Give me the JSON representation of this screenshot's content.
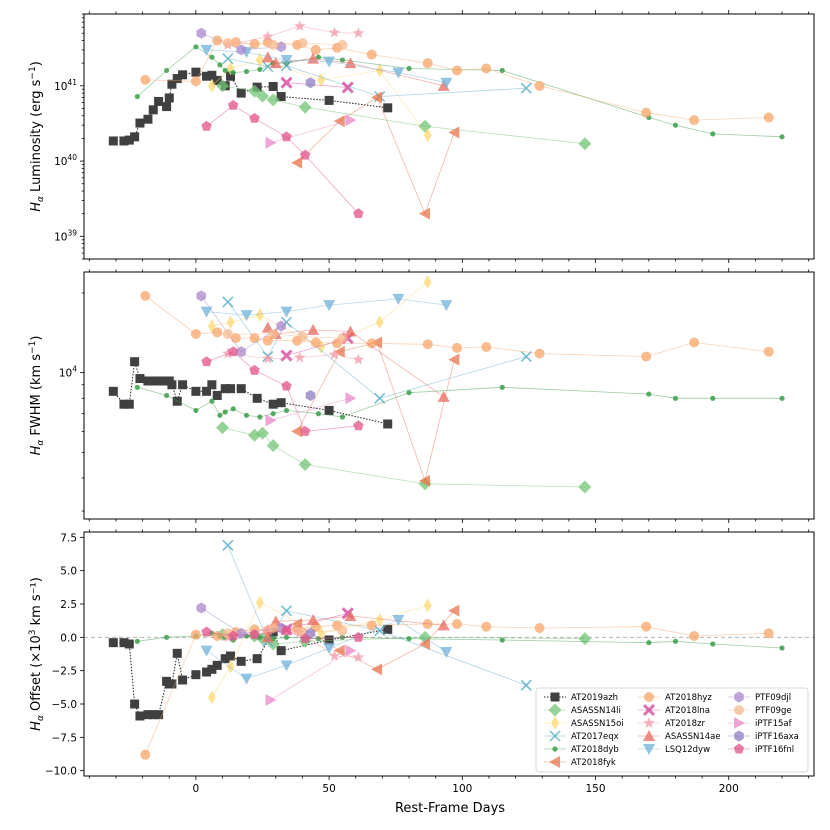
{
  "chart_data": {
    "type": "scatter",
    "xlabel": "Rest-Frame Days",
    "xlim": [
      -42,
      232
    ],
    "x_ticks": [
      0,
      50,
      100,
      150,
      200
    ],
    "panels": [
      {
        "name": "luminosity",
        "ylabel_main": "H",
        "ylabel_sub": "α",
        "ylabel_rest": " Luminosity (erg s",
        "ylabel_sup": "−1",
        "ylabel_end": ")",
        "scale": "log",
        "ylim": [
          5e+38,
          9e+41
        ],
        "yticks": [
          {
            "value": 1e+39,
            "base": "10",
            "exp": "39"
          },
          {
            "value": 1e+40,
            "base": "10",
            "exp": "40"
          },
          {
            "value": 1e+41,
            "base": "10",
            "exp": "41"
          }
        ]
      },
      {
        "name": "fwhm",
        "ylabel_main": "H",
        "ylabel_sub": "α",
        "ylabel_rest": " FWHM (km s",
        "ylabel_sup": "−1",
        "ylabel_end": ")",
        "scale": "log",
        "ylim": [
          2800,
          24000
        ],
        "yticks": [
          {
            "value": 10000,
            "base": "10",
            "exp": "4"
          }
        ]
      },
      {
        "name": "offset",
        "ylabel_main": "H",
        "ylabel_sub": "α",
        "ylabel_rest": " Offset (×10",
        "ylabel_sup": "3",
        "ylabel_end": " km s⁻¹)",
        "scale": "linear",
        "ylim": [
          -10.4,
          7.9
        ],
        "yticks": [
          {
            "value": 7.5,
            "label": "7.5"
          },
          {
            "value": 5.0,
            "label": "5.0"
          },
          {
            "value": 2.5,
            "label": "2.5"
          },
          {
            "value": 0.0,
            "label": "0.0"
          },
          {
            "value": -2.5,
            "label": "−2.5"
          },
          {
            "value": -5.0,
            "label": "−5.0"
          },
          {
            "value": -7.5,
            "label": "−7.5"
          },
          {
            "value": -10.0,
            "label": "−10.0"
          }
        ],
        "zero_line": 0
      }
    ],
    "legend_position": "lower-right",
    "series": [
      {
        "name": "AT2019azh",
        "color": "#404040",
        "marker": "square",
        "line": "dotted",
        "x": [
          -31,
          -27,
          -25,
          -23,
          -21,
          -18,
          -16,
          -14,
          -11,
          -10,
          -9,
          -7,
          -5,
          0,
          4,
          6,
          8,
          11,
          13,
          17,
          23,
          29,
          32,
          50,
          72
        ],
        "lum": [
          1.85e+40,
          1.85e+40,
          1.9e+40,
          2.1e+40,
          3.2e+40,
          3.6e+40,
          4.8e+40,
          6.2e+40,
          5.3e+40,
          6.9e+40,
          1.05e+41,
          1.25e+41,
          1.4e+41,
          1.52e+41,
          1.34e+41,
          1.38e+41,
          1.18e+41,
          1e+41,
          1.34e+41,
          8e+40,
          9.6e+40,
          9.8e+40,
          7.2e+40,
          6.4e+40,
          5.1e+40
        ],
        "fwhm": [
          8500,
          7600,
          7600,
          11000,
          9500,
          9300,
          9300,
          9300,
          9300,
          9300,
          9000,
          7800,
          9000,
          8500,
          8500,
          9000,
          8200,
          8700,
          8700,
          8700,
          8000,
          7600,
          7700,
          7200,
          6400
        ],
        "offset": [
          -0.4,
          -0.4,
          -0.5,
          -5.0,
          -5.9,
          -5.8,
          -5.8,
          -5.8,
          -3.3,
          -3.5,
          -3.5,
          -1.2,
          -3.2,
          -2.8,
          -2.6,
          -2.4,
          -2.1,
          -1.6,
          -1.4,
          -1.8,
          -1.6,
          0.4,
          -1.0,
          -0.2,
          0.6
        ]
      },
      {
        "name": "ASASSN14li",
        "color": "#73c476",
        "marker": "diamond",
        "line": "solid",
        "x": [
          10,
          22,
          25,
          29,
          41,
          86,
          146
        ],
        "lum": [
          1e+41,
          8.5e+40,
          7.3e+40,
          6.5e+40,
          5.2e+40,
          2.9e+40,
          1.7e+40
        ],
        "fwhm": [
          6200,
          5800,
          5900,
          5300,
          4500,
          3800,
          3700
        ],
        "offset": [
          0.2,
          0.1,
          -0.1,
          -0.5,
          -0.3,
          0.0,
          -0.1
        ]
      },
      {
        "name": "ASASSN15oi",
        "color": "#fdd873",
        "marker": "thin_diamond",
        "line": "solid",
        "x": [
          6,
          13,
          24,
          47,
          69,
          87
        ],
        "lum": [
          1e+41,
          1.7e+41,
          2.2e+41,
          1.2e+41,
          1.6e+41,
          2.2e+40
        ],
        "fwhm": [
          15000,
          15500,
          16500,
          12500,
          15500,
          22000
        ],
        "offset": [
          -4.5,
          -2.2,
          2.6,
          0.3,
          1.3,
          2.4
        ]
      },
      {
        "name": "AT2017eqx",
        "color": "#5aaec9",
        "marker": "x",
        "line": "solid",
        "x": [
          12,
          27,
          34,
          69,
          124
        ],
        "lum": [
          2.3e+41,
          1.8e+41,
          1.85e+41,
          7.2e+40,
          9.3e+40
        ],
        "fwhm": [
          18500,
          11500,
          15500,
          8000,
          11500
        ],
        "offset": [
          6.9,
          -0.3,
          2.0,
          0.5,
          -3.6
        ]
      },
      {
        "name": "AT2018dyb",
        "color": "#3c9e4b",
        "marker": "dot",
        "line": "solid",
        "x": [
          -22,
          -11,
          0,
          6,
          9,
          11,
          14,
          19,
          24,
          29,
          34,
          46,
          55,
          80,
          115,
          170,
          180,
          194,
          220
        ],
        "lum": [
          7.2e+40,
          1.6e+41,
          3.3e+41,
          2.4e+41,
          1.9e+41,
          1.6e+41,
          1.5e+41,
          1.55e+41,
          1.65e+41,
          2e+41,
          2e+41,
          2.4e+41,
          2.2e+41,
          1.7e+41,
          1.6e+41,
          3.8e+40,
          3e+40,
          2.3e+40,
          2.1e+40
        ],
        "fwhm": [
          8800,
          8200,
          7200,
          7800,
          6900,
          7100,
          7300,
          6900,
          6800,
          7000,
          7200,
          7000,
          6800,
          8400,
          8800,
          8300,
          8000,
          8000,
          8000
        ],
        "offset": [
          -0.3,
          0.0,
          0.1,
          0.3,
          0.1,
          0.0,
          -0.2,
          0.1,
          0.0,
          -0.1,
          0.0,
          -0.1,
          0.0,
          -0.1,
          -0.2,
          -0.4,
          -0.3,
          -0.5,
          -0.8
        ]
      },
      {
        "name": "AT2018fyk",
        "color": "#e8744b",
        "marker": "triangle_left",
        "line": "solid",
        "x": [
          38,
          54,
          68,
          86,
          97
        ],
        "lum": [
          9.5e+39,
          3.4e+40,
          7e+40,
          2e+39,
          2.4e+40
        ],
        "fwhm": [
          6000,
          12000,
          13000,
          3900,
          11200
        ],
        "offset": [
          1.0,
          -1.0,
          -2.4,
          -0.5,
          2.0
        ]
      },
      {
        "name": "AT2018hyz",
        "color": "#f8a66a",
        "marker": "circle",
        "line": "solid",
        "x": [
          -19,
          0,
          8,
          15,
          22,
          27,
          38,
          45,
          53,
          66,
          87,
          98,
          109,
          129,
          169,
          187,
          215
        ],
        "lum": [
          1.2e+41,
          1.15e+41,
          4e+41,
          3.8e+41,
          3.6e+41,
          3.8e+41,
          3.5e+41,
          3e+41,
          3.2e+41,
          2.6e+41,
          2e+41,
          1.6e+41,
          1.7e+41,
          1e+41,
          4.4e+40,
          3.5e+40,
          3.8e+40
        ],
        "fwhm": [
          19500,
          14000,
          14200,
          13500,
          13500,
          13200,
          13200,
          13000,
          12900,
          12900,
          12800,
          12400,
          12500,
          11800,
          11500,
          13000,
          12000
        ],
        "offset": [
          -8.8,
          0.2,
          0.1,
          0.4,
          0.6,
          0.5,
          0.6,
          0.8,
          0.9,
          0.9,
          1.0,
          1.0,
          0.8,
          0.7,
          0.8,
          0.1,
          0.3
        ]
      },
      {
        "name": "AT2018lna",
        "color": "#d64a9f",
        "marker": "plus",
        "line": "solid",
        "x": [
          34,
          57
        ],
        "lum": [
          1.1e+41,
          9.5e+40
        ],
        "fwhm": [
          11600,
          13500
        ],
        "offset": [
          0.6,
          1.8
        ]
      },
      {
        "name": "AT2018zr",
        "color": "#f39aa8",
        "marker": "star",
        "line": "solid",
        "x": [
          12,
          27,
          39,
          52,
          61
        ],
        "lum": [
          3.5e+41,
          4.5e+41,
          6.2e+41,
          5.1e+41,
          5e+41
        ],
        "fwhm": [
          11800,
          11300,
          11400,
          11700,
          11200
        ],
        "offset": [
          0.0,
          0.6,
          0.4,
          -1.4,
          -1.5
        ]
      },
      {
        "name": "ASASSN14ae",
        "color": "#e86a5f",
        "marker": "triangle_up",
        "line": "solid",
        "x": [
          27,
          30,
          44,
          58,
          93
        ],
        "lum": [
          2.4e+41,
          2e+41,
          2.3e+41,
          2e+41,
          1e+41
        ],
        "fwhm": [
          14800,
          14000,
          14500,
          14300,
          8100
        ],
        "offset": [
          0.0,
          1.2,
          1.3,
          1.6,
          0.9
        ]
      },
      {
        "name": "LSQ12dyw",
        "color": "#6fb2d8",
        "marker": "triangle_down",
        "line": "solid",
        "x": [
          4,
          19,
          34,
          50,
          76,
          94
        ],
        "lum": [
          3e+41,
          2.8e+41,
          2.2e+41,
          2.1e+41,
          1.5e+41,
          1.1e+41
        ],
        "fwhm": [
          17000,
          16500,
          17000,
          18000,
          19000,
          18000
        ],
        "offset": [
          -1.0,
          -3.1,
          -2.1,
          -0.8,
          1.3,
          -1.1
        ]
      },
      {
        "name": "PTF09djl",
        "color": "#a987cc",
        "marker": "hexagon",
        "line": "solid",
        "x": [
          2,
          17,
          32
        ],
        "lum": [
          5e+41,
          3e+41,
          3.3e+41
        ],
        "fwhm": [
          19500,
          12000,
          15000
        ],
        "offset": [
          2.2,
          0.3,
          0.7
        ]
      },
      {
        "name": "PTF09ge",
        "color": "#f5b98f",
        "marker": "circle",
        "line": "solid",
        "x": [
          12,
          29,
          40,
          55
        ],
        "lum": [
          3.7e+41,
          3.5e+41,
          3.7e+41,
          3.5e+41
        ],
        "fwhm": [
          14000,
          14000,
          13700,
          13500
        ],
        "offset": [
          0.3,
          0.7,
          0.4,
          0.5
        ]
      },
      {
        "name": "iPTF15af",
        "color": "#e987c7",
        "marker": "triangle_right",
        "line": "solid",
        "x": [
          28,
          58
        ],
        "lum": [
          1.75e+40,
          3.5e+40
        ],
        "fwhm": [
          6600,
          8000
        ],
        "offset": [
          -4.7,
          -1.0
        ]
      },
      {
        "name": "iPTF16axa",
        "color": "#8c7cc0",
        "marker": "hexagon",
        "line": "solid",
        "x": [
          43
        ],
        "lum": [
          1.1e+41
        ],
        "fwhm": [
          8200
        ],
        "offset": [
          0.3
        ]
      },
      {
        "name": "iPTF16fnl",
        "color": "#e0528a",
        "marker": "pentagon",
        "line": "solid",
        "x": [
          4,
          14,
          22,
          34,
          41,
          61
        ],
        "lum": [
          2.9e+40,
          5.5e+40,
          3.7e+40,
          2.1e+40,
          1.2e+40,
          2e+39
        ],
        "fwhm": [
          11000,
          12000,
          10200,
          8900,
          6000,
          6300
        ],
        "offset": [
          0.4,
          0.1,
          0.2,
          0.5,
          -0.1,
          0.0
        ]
      }
    ],
    "legend_layout": [
      [
        "AT2019azh",
        "ASASSN14li",
        "ASASSN15oi",
        "AT2017eqx",
        "AT2018dyb",
        "AT2018fyk"
      ],
      [
        "AT2018hyz",
        "AT2018lna",
        "AT2018zr",
        "ASASSN14ae",
        "LSQ12dyw"
      ],
      [
        "PTF09djl",
        "PTF09ge",
        "iPTF15af",
        "iPTF16axa",
        "iPTF16fnl"
      ]
    ]
  }
}
